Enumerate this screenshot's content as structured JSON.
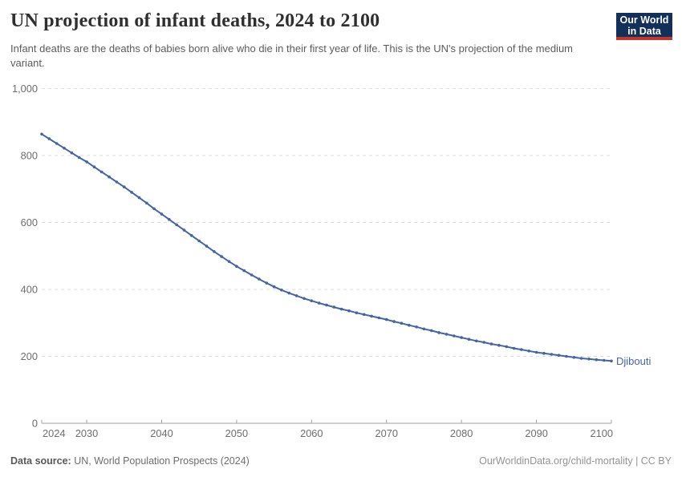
{
  "header": {
    "title": "UN projection of infant deaths, 2024 to 2100",
    "subtitle": "Infant deaths are the deaths of babies born alive who die in their first year of life. This is the UN's projection of the medium variant.",
    "logo": {
      "line1": "Our World",
      "line2": "in Data",
      "bg_color": "#12305a",
      "accent_color": "#c0372e"
    }
  },
  "chart_data": {
    "type": "line",
    "title": "UN projection of infant deaths, 2024 to 2100",
    "xlabel": "",
    "ylabel": "",
    "xlim": [
      2024,
      2100
    ],
    "ylim": [
      0,
      1000
    ],
    "x_ticks": [
      2024,
      2030,
      2040,
      2050,
      2060,
      2070,
      2080,
      2090,
      2100
    ],
    "y_ticks": [
      0,
      200,
      400,
      600,
      800,
      1000
    ],
    "y_tick_labels": [
      "0",
      "200",
      "400",
      "600",
      "800",
      "1,000"
    ],
    "grid": "horizontal-dashed",
    "legend": "end-of-line-label",
    "x": [
      2024,
      2025,
      2026,
      2027,
      2028,
      2029,
      2030,
      2031,
      2032,
      2033,
      2034,
      2035,
      2036,
      2037,
      2038,
      2039,
      2040,
      2041,
      2042,
      2043,
      2044,
      2045,
      2046,
      2047,
      2048,
      2049,
      2050,
      2051,
      2052,
      2053,
      2054,
      2055,
      2056,
      2057,
      2058,
      2059,
      2060,
      2061,
      2062,
      2063,
      2064,
      2065,
      2066,
      2067,
      2068,
      2069,
      2070,
      2071,
      2072,
      2073,
      2074,
      2075,
      2076,
      2077,
      2078,
      2079,
      2080,
      2081,
      2082,
      2083,
      2084,
      2085,
      2086,
      2087,
      2088,
      2089,
      2090,
      2091,
      2092,
      2093,
      2094,
      2095,
      2096,
      2097,
      2098,
      2099,
      2100
    ],
    "series": [
      {
        "name": "Djibouti",
        "color": "#4464a8",
        "values": [
          864,
          850,
          836,
          822,
          808,
          794,
          781,
          766,
          751,
          736,
          721,
          706,
          690,
          674,
          658,
          641,
          625,
          609,
          593,
          577,
          561,
          545,
          529,
          513,
          498,
          483,
          469,
          456,
          443,
          431,
          419,
          408,
          398,
          389,
          381,
          373,
          366,
          359,
          353,
          347,
          341,
          336,
          330,
          325,
          320,
          315,
          310,
          304,
          299,
          293,
          288,
          282,
          277,
          271,
          266,
          261,
          256,
          251,
          246,
          242,
          237,
          233,
          229,
          224,
          220,
          216,
          212,
          209,
          206,
          203,
          200,
          197,
          194,
          192,
          190,
          188,
          186
        ]
      }
    ]
  },
  "footer": {
    "source_label": "Data source:",
    "source_text": " UN, World Population Prospects (2024)",
    "rights": "OurWorldinData.org/child-mortality | CC BY"
  }
}
